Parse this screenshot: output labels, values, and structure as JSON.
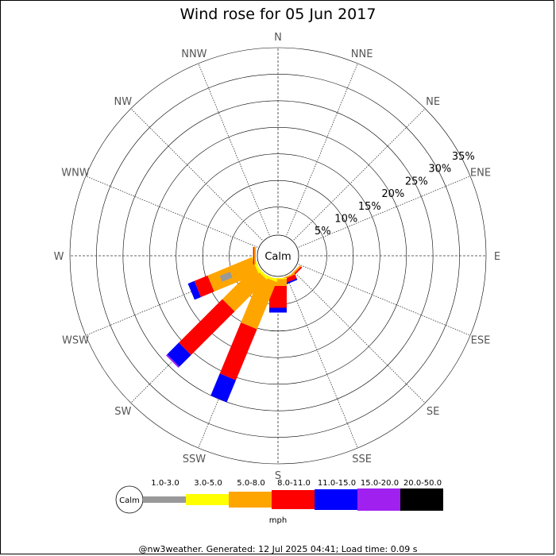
{
  "chart_data": {
    "type": "wind-rose",
    "title": "Wind rose for 05 Jun 2017",
    "directions": [
      "N",
      "NNE",
      "NE",
      "ENE",
      "E",
      "ESE",
      "SE",
      "SSE",
      "S",
      "SSW",
      "SW",
      "WSW",
      "W",
      "WNW",
      "NW",
      "NNW"
    ],
    "ring_labels": [
      "5%",
      "10%",
      "15%",
      "20%",
      "25%",
      "30%",
      "35%"
    ],
    "ring_values": [
      5,
      10,
      15,
      20,
      25,
      30,
      35
    ],
    "max_percent": 35,
    "center_label": "Calm",
    "units": "mph",
    "bins": [
      {
        "label": "1.0-3.0",
        "color": "#999999"
      },
      {
        "label": "3.0-5.0",
        "color": "#ffff00"
      },
      {
        "label": "5.0-8.0",
        "color": "#ffa500"
      },
      {
        "label": "8.0-11.0",
        "color": "#ff0000"
      },
      {
        "label": "11.0-15.0",
        "color": "#0000ff"
      },
      {
        "label": "15.0-20.0",
        "color": "#a020f0"
      },
      {
        "label": "20.0-50.0",
        "color": "#000000"
      }
    ],
    "cumulative_percent": {
      "S": [
        0,
        0.2,
        1.5,
        5.6,
        6.5,
        6.5,
        6.5
      ],
      "SSE": [
        0,
        0,
        0.3,
        1.1,
        1.4,
        1.4,
        1.4
      ],
      "SE": [
        0,
        0,
        0.3,
        0.6,
        0.6,
        0.6,
        0.6
      ],
      "SSW": [
        0,
        0.5,
        10.1,
        20.5,
        25.0,
        25.0,
        25.0
      ],
      "SW": [
        0,
        0.5,
        9.0,
        20.6,
        23.7,
        24.0,
        24.0
      ],
      "WSW": [
        0,
        0.5,
        9.5,
        12.2,
        13.5,
        13.5,
        13.5
      ],
      "W": [
        0,
        0,
        0.3,
        0.5,
        0.5,
        0.5,
        0.5
      ]
    },
    "extra_segments": [
      {
        "from_angle": 248,
        "to_angle": 248,
        "r_from": 5.3,
        "r_to": 7.4,
        "bin_index": 0
      }
    ],
    "legend": {
      "calm_label": "Calm",
      "units_label": "mph"
    }
  },
  "footer": "@nw3weather. Generated: 12 Jul 2025 04:41; Load time: 0.09 s"
}
